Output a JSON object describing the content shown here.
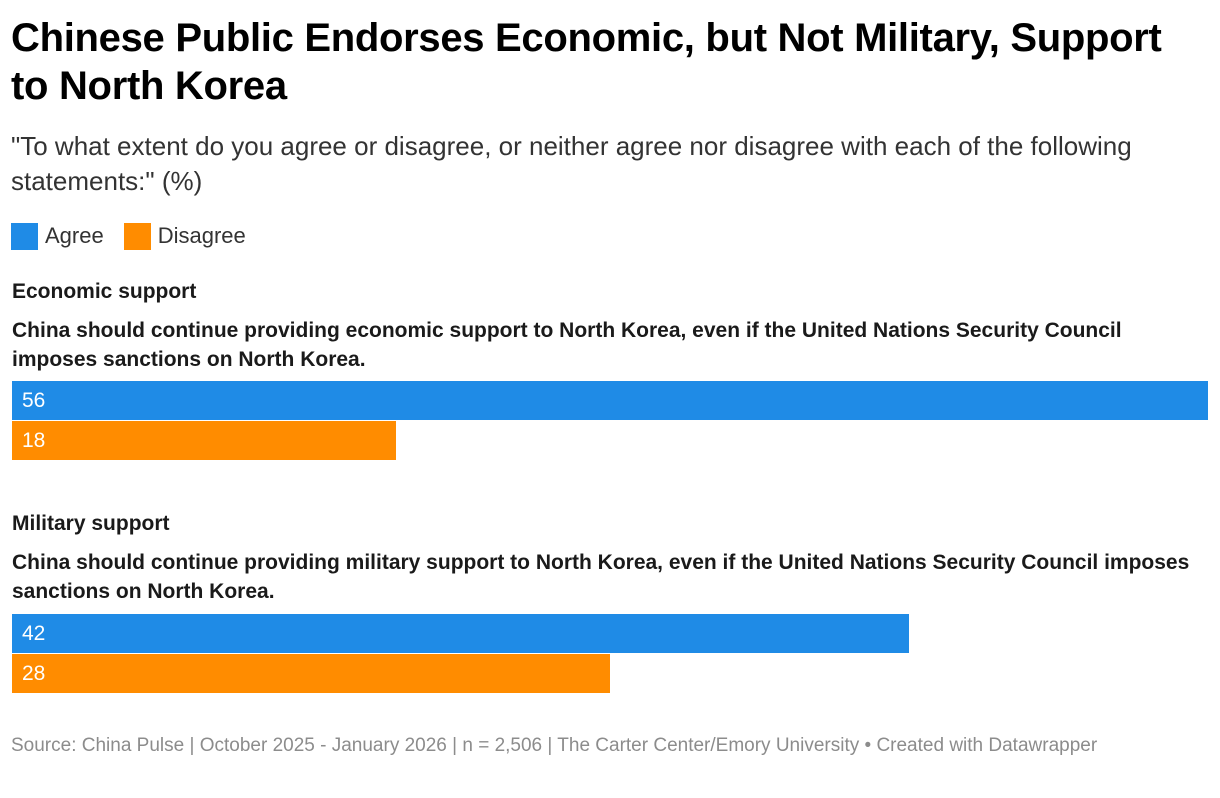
{
  "title": "Chinese Public Endorses Economic, but Not Military, Support to North Korea",
  "subtitle": "\"To what extent do you agree or disagree, or neither agree nor disagree with each of the following statements:\" (%)",
  "legend": {
    "agree": "Agree",
    "disagree": "Disagree"
  },
  "colors": {
    "agree": "#1f8be6",
    "disagree": "#ff8c00"
  },
  "chart_data": {
    "type": "bar",
    "orientation": "horizontal",
    "xlim": [
      0,
      56
    ],
    "series": [
      {
        "name": "Agree",
        "values": [
          56,
          42
        ]
      },
      {
        "name": "Disagree",
        "values": [
          18,
          28
        ]
      }
    ],
    "groups": [
      {
        "title": "Economic support",
        "question": "China should continue providing economic support to North Korea, even if the United Nations Security Council imposes sanctions on North Korea.",
        "agree": 56,
        "disagree": 18
      },
      {
        "title": "Military support",
        "question": "China should continue providing military support to North Korea, even if the United Nations Security Council imposes sanctions on North Korea.",
        "agree": 42,
        "disagree": 28
      }
    ]
  },
  "footer": "Source: China Pulse | October 2025 - January 2026 | n = 2,506 | The Carter Center/Emory University • Created with Datawrapper"
}
